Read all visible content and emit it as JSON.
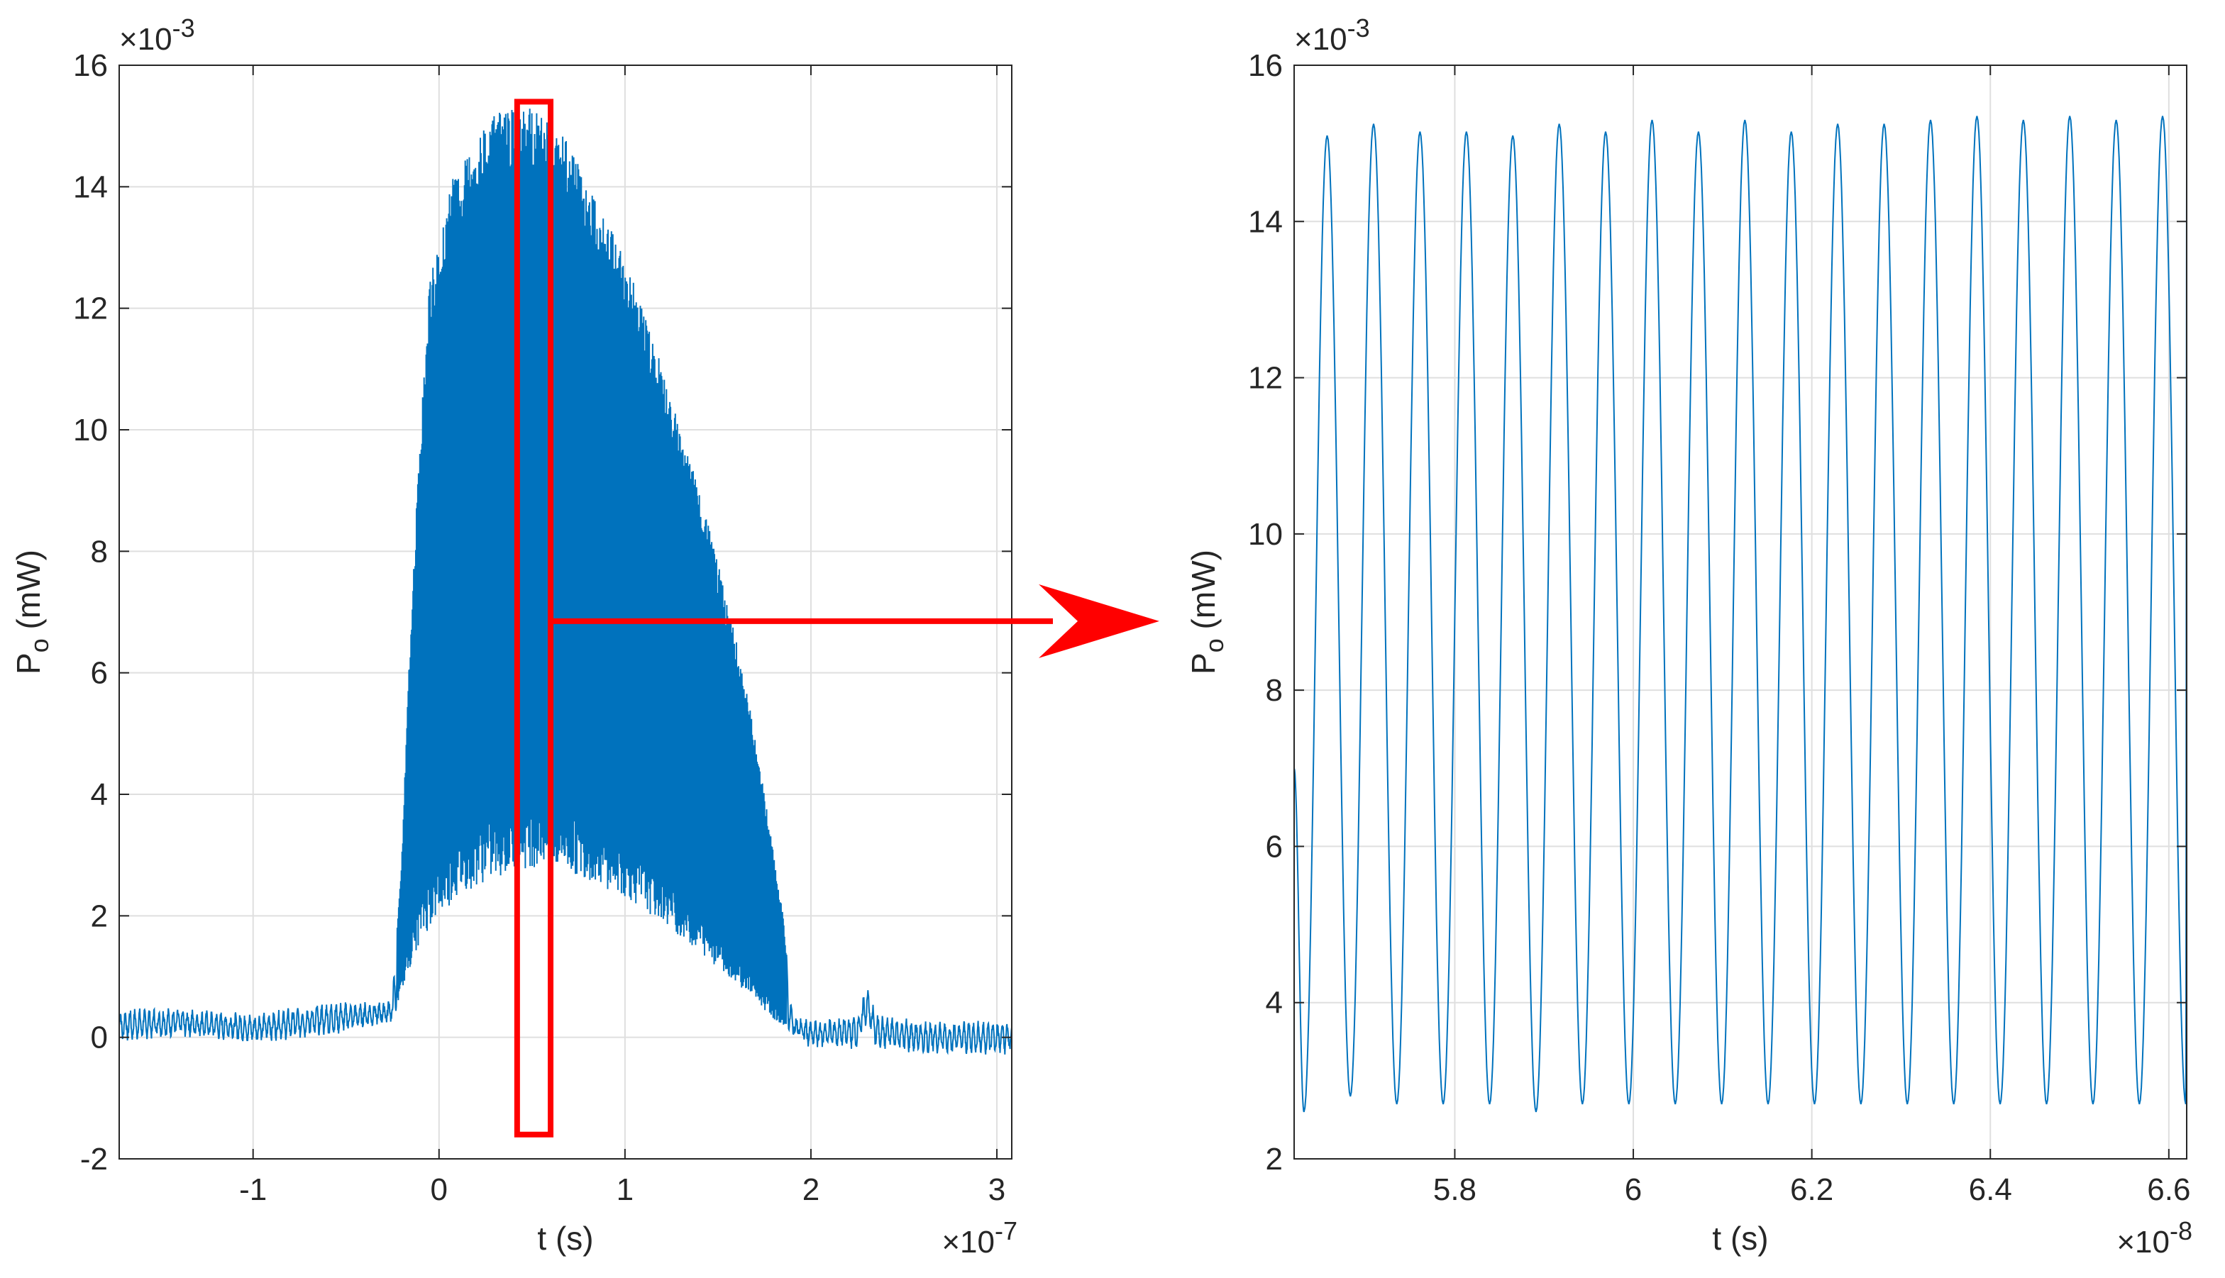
{
  "chart_data": [
    {
      "type": "line",
      "title": "",
      "xlabel": "t (s)",
      "ylabel_main": "P",
      "ylabel_sub": "o",
      "ylabel_unit": " (mW)",
      "x_exponent_base": "×10",
      "x_exponent_power": "-7",
      "y_exponent_base": "×10",
      "y_exponent_power": "-3",
      "xlim": [
        -1.72,
        3.08
      ],
      "ylim": [
        -2,
        16
      ],
      "xticks": [
        -1,
        0,
        1,
        2,
        3
      ],
      "yticks": [
        -2,
        0,
        2,
        4,
        6,
        8,
        10,
        12,
        14,
        16
      ],
      "xtick_labels": [
        "-1",
        "0",
        "1",
        "2",
        "3"
      ],
      "ytick_labels": [
        "-2",
        "0",
        "2",
        "4",
        "6",
        "8",
        "10",
        "12",
        "14",
        "16"
      ],
      "grid": true,
      "line_color": "#0072BD",
      "series": [
        {
          "description": "pulse envelope of fast oscillation",
          "upper_envelope": {
            "x": [
              -1.72,
              -1.4,
              -1.0,
              -0.6,
              -0.3,
              -0.25,
              -0.2,
              -0.15,
              -0.1,
              -0.05,
              0.0,
              0.05,
              0.1,
              0.2,
              0.3,
              0.4,
              0.5,
              0.6,
              0.7,
              0.8,
              0.9,
              1.0,
              1.1,
              1.2,
              1.3,
              1.4,
              1.5,
              1.6,
              1.7,
              1.8,
              1.85,
              1.9,
              2.0,
              2.25,
              2.3,
              2.35,
              2.6,
              3.08
            ],
            "y": [
              0.4,
              0.4,
              0.3,
              0.5,
              0.5,
              0.6,
              3.0,
              7.0,
              10.0,
              12.5,
              13.0,
              14.0,
              14.3,
              14.8,
              15.2,
              15.3,
              15.3,
              15.2,
              14.8,
              14.0,
              13.5,
              12.8,
              12.0,
              11.0,
              10.0,
              9.0,
              7.8,
              6.5,
              5.0,
              3.0,
              2.0,
              0.3,
              0.2,
              0.3,
              0.8,
              0.3,
              0.2,
              0.2
            ]
          },
          "lower_envelope": {
            "x": [
              -1.72,
              -1.4,
              -1.0,
              -0.6,
              -0.3,
              -0.25,
              -0.2,
              -0.1,
              0.0,
              0.1,
              0.2,
              0.3,
              0.4,
              0.5,
              0.6,
              0.8,
              1.0,
              1.2,
              1.4,
              1.6,
              1.7,
              1.8,
              1.9,
              2.0,
              2.25,
              2.3,
              2.35,
              2.6,
              3.08
            ],
            "y": [
              0.0,
              0.1,
              0.0,
              0.1,
              0.3,
              0.3,
              0.8,
              1.6,
              2.0,
              2.3,
              2.5,
              2.6,
              2.7,
              2.8,
              2.8,
              2.6,
              2.3,
              1.9,
              1.4,
              0.9,
              0.6,
              0.3,
              0.1,
              -0.1,
              -0.1,
              0.3,
              -0.1,
              -0.2,
              -0.2
            ]
          }
        }
      ]
    },
    {
      "type": "line",
      "title": "",
      "xlabel": "t (s)",
      "ylabel_main": "P",
      "ylabel_sub": "o",
      "ylabel_unit": " (mW)",
      "x_exponent_base": "×10",
      "x_exponent_power": "-8",
      "y_exponent_base": "×10",
      "y_exponent_power": "-3",
      "xlim": [
        5.62,
        6.62
      ],
      "ylim": [
        2,
        16
      ],
      "xticks": [
        5.8,
        6.0,
        6.2,
        6.4,
        6.6
      ],
      "yticks": [
        2,
        4,
        6,
        8,
        10,
        12,
        14,
        16
      ],
      "xtick_labels": [
        "5.8",
        "6",
        "6.2",
        "6.4",
        "6.6"
      ],
      "ytick_labels": [
        "2",
        "4",
        "6",
        "8",
        "10",
        "12",
        "14",
        "16"
      ],
      "grid": true,
      "line_color": "#0072BD",
      "series": [
        {
          "description": "zoomed oscillation",
          "peaks_x": [
            5.657,
            5.709,
            5.761,
            5.813,
            5.865,
            5.917,
            5.969,
            6.021,
            6.073,
            6.125,
            6.177,
            6.229,
            6.281,
            6.333,
            6.385,
            6.437,
            6.489,
            6.541,
            6.593
          ],
          "peaks_y": [
            15.1,
            15.25,
            15.15,
            15.15,
            15.1,
            15.25,
            15.15,
            15.3,
            15.15,
            15.3,
            15.15,
            15.25,
            15.25,
            15.3,
            15.35,
            15.3,
            15.35,
            15.3,
            15.35
          ],
          "troughs_x": [
            5.631,
            5.683,
            5.735,
            5.787,
            5.839,
            5.891,
            5.943,
            5.995,
            6.047,
            6.099,
            6.151,
            6.203,
            6.255,
            6.307,
            6.359,
            6.411,
            6.463,
            6.515,
            6.567,
            6.619
          ],
          "troughs_y": [
            2.6,
            2.8,
            2.7,
            2.7,
            2.7,
            2.6,
            2.7,
            2.7,
            2.7,
            2.7,
            2.7,
            2.7,
            2.7,
            2.7,
            2.7,
            2.7,
            2.7,
            2.7,
            2.7,
            2.7
          ]
        }
      ]
    }
  ],
  "annotation": {
    "highlight_box": {
      "x_range": [
        0.42,
        0.6
      ],
      "y_range": [
        -1.6,
        15.4
      ],
      "color": "#FF0000"
    },
    "arrow": {
      "from_x": 0.6,
      "y": 6.85,
      "color": "#FF0000"
    }
  }
}
